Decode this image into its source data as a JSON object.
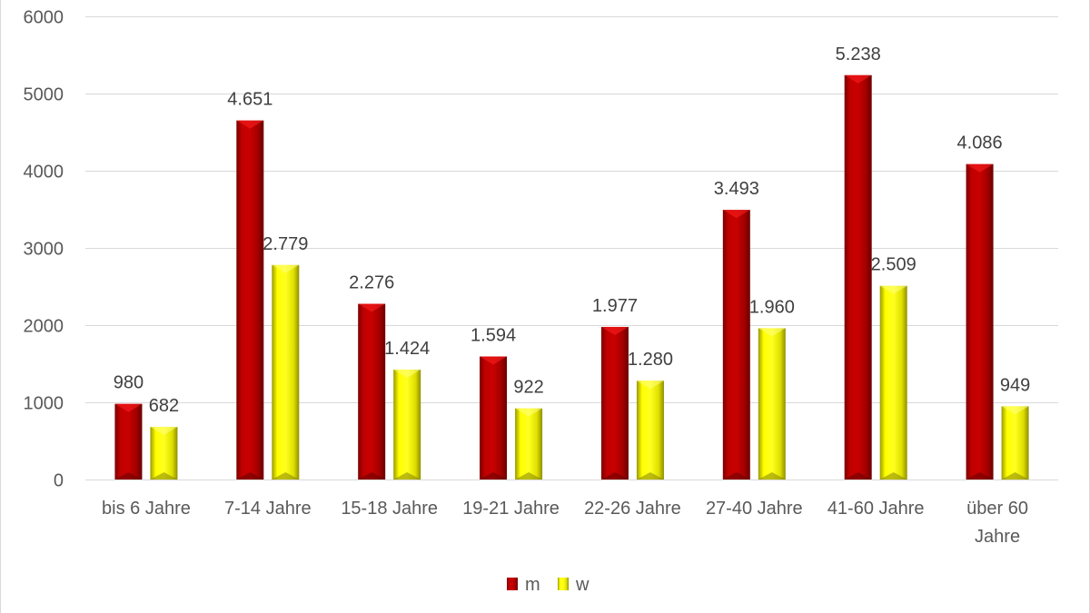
{
  "chart_data": {
    "type": "bar",
    "categories": [
      [
        "bis 6 Jahre"
      ],
      [
        "7-14 Jahre"
      ],
      [
        "15-18 Jahre"
      ],
      [
        "19-21 Jahre"
      ],
      [
        "22-26 Jahre"
      ],
      [
        "27-40 Jahre"
      ],
      [
        "41-60 Jahre"
      ],
      [
        "über 60",
        "Jahre"
      ]
    ],
    "series": [
      {
        "name": "m",
        "color": "#c00000",
        "values": [
          980,
          4651,
          2276,
          1594,
          1977,
          3493,
          5238,
          4086
        ],
        "labels": [
          "980",
          "4.651",
          "2.276",
          "1.594",
          "1.977",
          "3.493",
          "5.238",
          "4.086"
        ]
      },
      {
        "name": "w",
        "color": "#ffff00",
        "values": [
          682,
          2779,
          1424,
          922,
          1280,
          1960,
          2509,
          949
        ],
        "labels": [
          "682",
          "2.779",
          "1.424",
          "922",
          "1.280",
          "1.960",
          "2.509",
          "949"
        ]
      }
    ],
    "yticks": [
      0,
      1000,
      2000,
      3000,
      4000,
      5000,
      6000
    ],
    "ylim": [
      0,
      6000
    ],
    "grid": true,
    "legend": "bottom"
  }
}
